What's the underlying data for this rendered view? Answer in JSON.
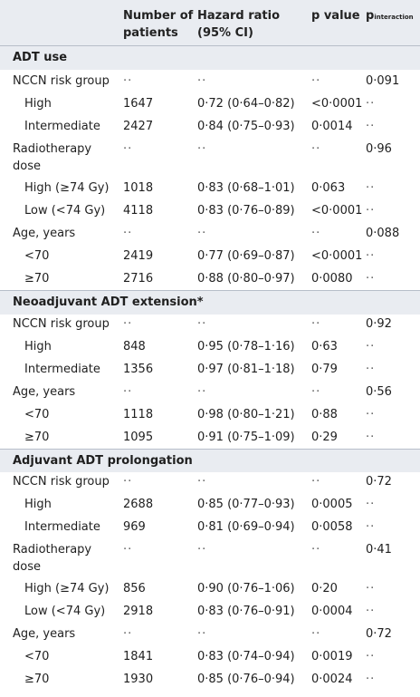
{
  "header": {
    "n": "Number of\npatients",
    "hr": "Hazard ratio\n(95% CI)",
    "p": "p value",
    "pi_main": "p",
    "pi_sub": "interaction"
  },
  "sections": [
    {
      "title": "ADT use",
      "rows": [
        {
          "label": "NCCN risk group",
          "n": "··",
          "hr": "··",
          "p": "··",
          "pi": "0·091"
        },
        {
          "label": "High",
          "n": "1647",
          "hr": "0·72 (0·64–0·82)",
          "p": "<0·0001",
          "pi": "··"
        },
        {
          "label": "Intermediate",
          "n": "2427",
          "hr": "0·84 (0·75–0·93)",
          "p": "0·0014",
          "pi": "··"
        },
        {
          "label": "Radiotherapy\ndose",
          "n": "··",
          "hr": "··",
          "p": "··",
          "pi": "0·96"
        },
        {
          "label": "High (≥74 Gy)",
          "n": "1018",
          "hr": "0·83 (0·68–1·01)",
          "p": "0·063",
          "pi": "··"
        },
        {
          "label": "Low (<74 Gy)",
          "n": "4118",
          "hr": "0·83 (0·76–0·89)",
          "p": "<0·0001",
          "pi": "··"
        },
        {
          "label": "Age, years",
          "n": "··",
          "hr": "··",
          "p": "··",
          "pi": "0·088"
        },
        {
          "label": "<70",
          "n": "2419",
          "hr": "0·77 (0·69–0·87)",
          "p": "<0·0001",
          "pi": "··"
        },
        {
          "label": "≥70",
          "n": "2716",
          "hr": "0·88 (0·80–0·97)",
          "p": "0·0080",
          "pi": "··"
        }
      ]
    },
    {
      "title": "Neoadjuvant ADT extension*",
      "rows": [
        {
          "label": "NCCN risk group",
          "n": "··",
          "hr": "··",
          "p": "··",
          "pi": "0·92"
        },
        {
          "label": "High",
          "n": "848",
          "hr": "0·95 (0·78–1·16)",
          "p": "0·63",
          "pi": "··"
        },
        {
          "label": "Intermediate",
          "n": "1356",
          "hr": "0·97 (0·81–1·18)",
          "p": "0·79",
          "pi": "··"
        },
        {
          "label": "Age, years",
          "n": "··",
          "hr": "··",
          "p": "··",
          "pi": "0·56"
        },
        {
          "label": "<70",
          "n": "1118",
          "hr": "0·98 (0·80–1·21)",
          "p": "0·88",
          "pi": "··"
        },
        {
          "label": "≥70",
          "n": "1095",
          "hr": "0·91 (0·75–1·09)",
          "p": "0·29",
          "pi": "··"
        }
      ]
    },
    {
      "title": "Adjuvant ADT prolongation",
      "rows": [
        {
          "label": "NCCN risk group",
          "n": "··",
          "hr": "··",
          "p": "··",
          "pi": "0·72"
        },
        {
          "label": "High",
          "n": "2688",
          "hr": "0·85 (0·77–0·93)",
          "p": "0·0005",
          "pi": "··"
        },
        {
          "label": "Intermediate",
          "n": "969",
          "hr": "0·81 (0·69–0·94)",
          "p": "0·0058",
          "pi": "··"
        },
        {
          "label": "Radiotherapy\ndose",
          "n": "··",
          "hr": "··",
          "p": "··",
          "pi": "0·41"
        },
        {
          "label": "High (≥74 Gy)",
          "n": "856",
          "hr": "0·90 (0·76–1·06)",
          "p": "0·20",
          "pi": "··"
        },
        {
          "label": "Low (<74 Gy)",
          "n": "2918",
          "hr": "0·83 (0·76–0·91)",
          "p": "0·0004",
          "pi": "··"
        },
        {
          "label": "Age, years",
          "n": "··",
          "hr": "··",
          "p": "··",
          "pi": "0·72"
        },
        {
          "label": "<70",
          "n": "1841",
          "hr": "0·83 (0·74–0·94)",
          "p": "0·0019",
          "pi": "··"
        },
        {
          "label": "≥70",
          "n": "1930",
          "hr": "0·85 (0·76–0·94)",
          "p": "0·0024",
          "pi": "··"
        }
      ]
    }
  ]
}
